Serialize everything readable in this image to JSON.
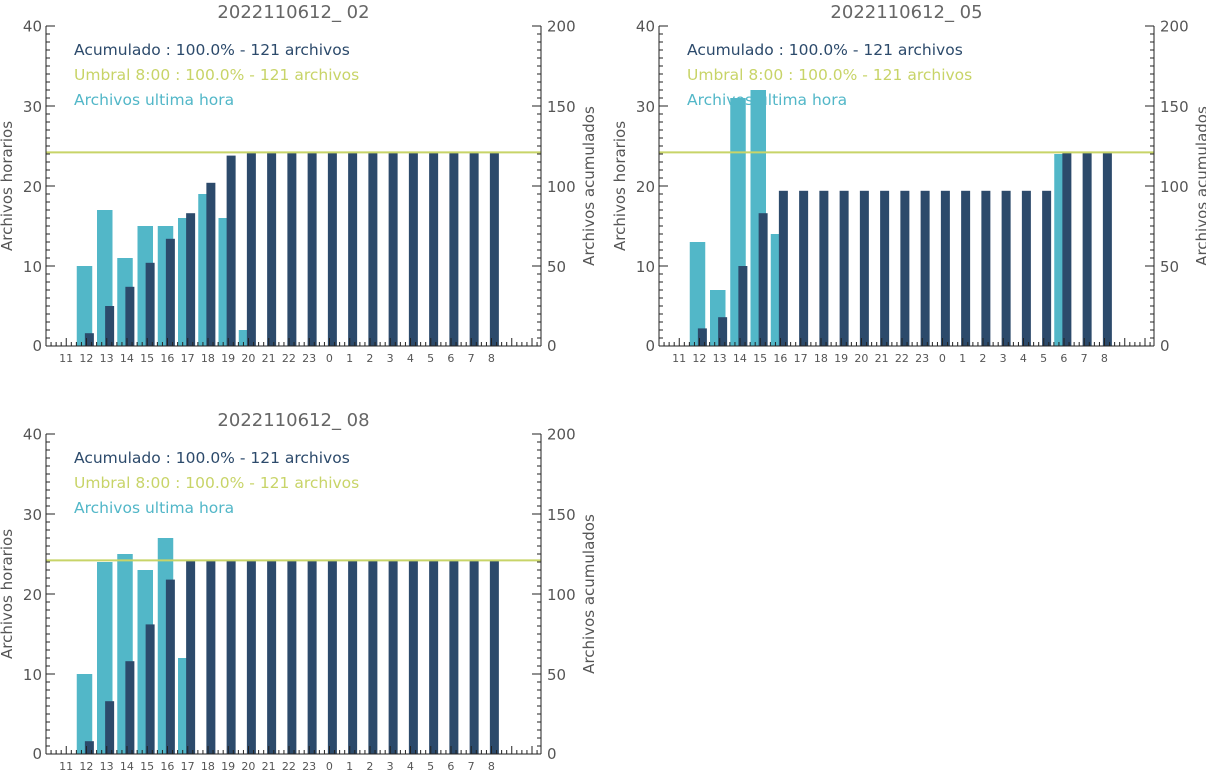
{
  "colors": {
    "accumulated": "#2c4a6b",
    "hourly": "#52b7c8",
    "threshold": "#c8d468"
  },
  "chart_data": [
    {
      "type": "bar",
      "title": "2022110612_ 02",
      "ylabel_left": "Archivos horarios",
      "ylabel_right": "Archivos acumulados",
      "ylim_left": [
        0,
        40
      ],
      "ylim_right": [
        0,
        200
      ],
      "yticks_left": [
        "0",
        "10",
        "20",
        "30",
        "40"
      ],
      "yticks_right": [
        "0",
        "50",
        "100",
        "150",
        "200"
      ],
      "categories": [
        "11",
        "12",
        "13",
        "14",
        "15",
        "16",
        "17",
        "18",
        "19",
        "20",
        "21",
        "22",
        "23",
        "0",
        "1",
        "2",
        "3",
        "4",
        "5",
        "6",
        "7",
        "8"
      ],
      "legend": [
        "Acumulado : 100.0% - 121 archivos",
        "Umbral 8:00 : 100.0% - 121 archivos",
        "Archivos ultima hora"
      ],
      "series": [
        {
          "name": "Archivos ultima hora",
          "values": [
            0,
            10,
            17,
            11,
            15,
            15,
            16,
            19,
            16,
            2,
            0,
            0,
            0,
            0,
            0,
            0,
            0,
            0,
            0,
            0,
            0,
            0
          ]
        },
        {
          "name": "Acumulado",
          "values": [
            0,
            8,
            25,
            37,
            52,
            67,
            83,
            102,
            119,
            121,
            121,
            121,
            121,
            121,
            121,
            121,
            121,
            121,
            121,
            121,
            121,
            121
          ]
        }
      ],
      "threshold": 121
    },
    {
      "type": "bar",
      "title": "2022110612_ 05",
      "ylabel_left": "Archivos horarios",
      "ylabel_right": "Archivos acumulados",
      "ylim_left": [
        0,
        40
      ],
      "ylim_right": [
        0,
        200
      ],
      "yticks_left": [
        "0",
        "10",
        "20",
        "30",
        "40"
      ],
      "yticks_right": [
        "0",
        "50",
        "100",
        "150",
        "200"
      ],
      "categories": [
        "11",
        "12",
        "13",
        "14",
        "15",
        "16",
        "17",
        "18",
        "19",
        "20",
        "21",
        "22",
        "23",
        "0",
        "1",
        "2",
        "3",
        "4",
        "5",
        "6",
        "7",
        "8"
      ],
      "legend": [
        "Acumulado : 100.0% - 121 archivos",
        "Umbral 8:00 : 100.0% - 121 archivos",
        "Archivos ultima hora"
      ],
      "series": [
        {
          "name": "Archivos ultima hora",
          "values": [
            0,
            13,
            7,
            31,
            32,
            14,
            0,
            0,
            0,
            0,
            0,
            0,
            0,
            0,
            0,
            0,
            0,
            0,
            0,
            24,
            0,
            0
          ]
        },
        {
          "name": "Acumulado",
          "values": [
            0,
            11,
            18,
            50,
            83,
            97,
            97,
            97,
            97,
            97,
            97,
            97,
            97,
            97,
            97,
            97,
            97,
            97,
            97,
            121,
            121,
            121
          ]
        }
      ],
      "threshold": 121
    },
    {
      "type": "bar",
      "title": "2022110612_ 08",
      "ylabel_left": "Archivos horarios",
      "ylabel_right": "Archivos acumulados",
      "ylim_left": [
        0,
        40
      ],
      "ylim_right": [
        0,
        200
      ],
      "yticks_left": [
        "0",
        "10",
        "20",
        "30",
        "40"
      ],
      "yticks_right": [
        "0",
        "50",
        "100",
        "150",
        "200"
      ],
      "categories": [
        "11",
        "12",
        "13",
        "14",
        "15",
        "16",
        "17",
        "18",
        "19",
        "20",
        "21",
        "22",
        "23",
        "0",
        "1",
        "2",
        "3",
        "4",
        "5",
        "6",
        "7",
        "8"
      ],
      "legend": [
        "Acumulado : 100.0% - 121 archivos",
        "Umbral 8:00 : 100.0% - 121 archivos",
        "Archivos ultima hora"
      ],
      "series": [
        {
          "name": "Archivos ultima hora",
          "values": [
            0,
            10,
            24,
            25,
            23,
            27,
            12,
            0,
            0,
            0,
            0,
            0,
            0,
            0,
            0,
            0,
            0,
            0,
            0,
            0,
            0,
            0
          ]
        },
        {
          "name": "Acumulado",
          "values": [
            0,
            8,
            33,
            58,
            81,
            109,
            121,
            121,
            121,
            121,
            121,
            121,
            121,
            121,
            121,
            121,
            121,
            121,
            121,
            121,
            121,
            121
          ]
        }
      ],
      "threshold": 121
    }
  ]
}
